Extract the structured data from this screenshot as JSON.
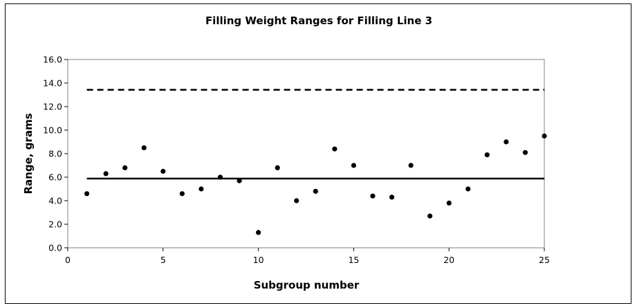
{
  "chart_data": {
    "type": "scatter",
    "title": "Filling Weight Ranges for Filling Line 3",
    "xlabel": "Subgroup number",
    "ylabel": "Range, grams",
    "xlim": [
      0,
      25
    ],
    "ylim": [
      0,
      16
    ],
    "xticks": [
      0,
      5,
      10,
      15,
      20,
      25
    ],
    "xtick_labels": [
      "0",
      "5",
      "10",
      "15",
      "20",
      "25"
    ],
    "yticks": [
      0,
      2,
      4,
      6,
      8,
      10,
      12,
      14,
      16
    ],
    "ytick_labels": [
      "0.0",
      "2.0",
      "4.0",
      "6.0",
      "8.0",
      "10.0",
      "12.0",
      "14.0",
      "16.0"
    ],
    "grid": false,
    "legend": "none",
    "series": [
      {
        "x": [
          1,
          2,
          3,
          4,
          5,
          6,
          7,
          8,
          9,
          10,
          11,
          12,
          13,
          14,
          15,
          16,
          17,
          18,
          19,
          20,
          21,
          22,
          23,
          24,
          25
        ],
        "y": [
          4.6,
          6.3,
          6.8,
          8.5,
          6.5,
          4.6,
          5.0,
          6.0,
          5.7,
          1.3,
          6.8,
          4.0,
          4.8,
          8.4,
          7.0,
          4.4,
          4.3,
          7.0,
          2.7,
          3.8,
          5.0,
          7.9,
          9.0,
          8.1,
          9.5
        ]
      }
    ],
    "reference_lines": [
      {
        "id": "center",
        "y": 5.88,
        "x_from": 1,
        "x_to": 25,
        "style": "solid"
      },
      {
        "id": "ucl",
        "y": 13.43,
        "x_from": 1,
        "x_to": 25,
        "style": "dashed"
      }
    ],
    "colors": {
      "marker": "#000000",
      "line": "#000000"
    }
  }
}
